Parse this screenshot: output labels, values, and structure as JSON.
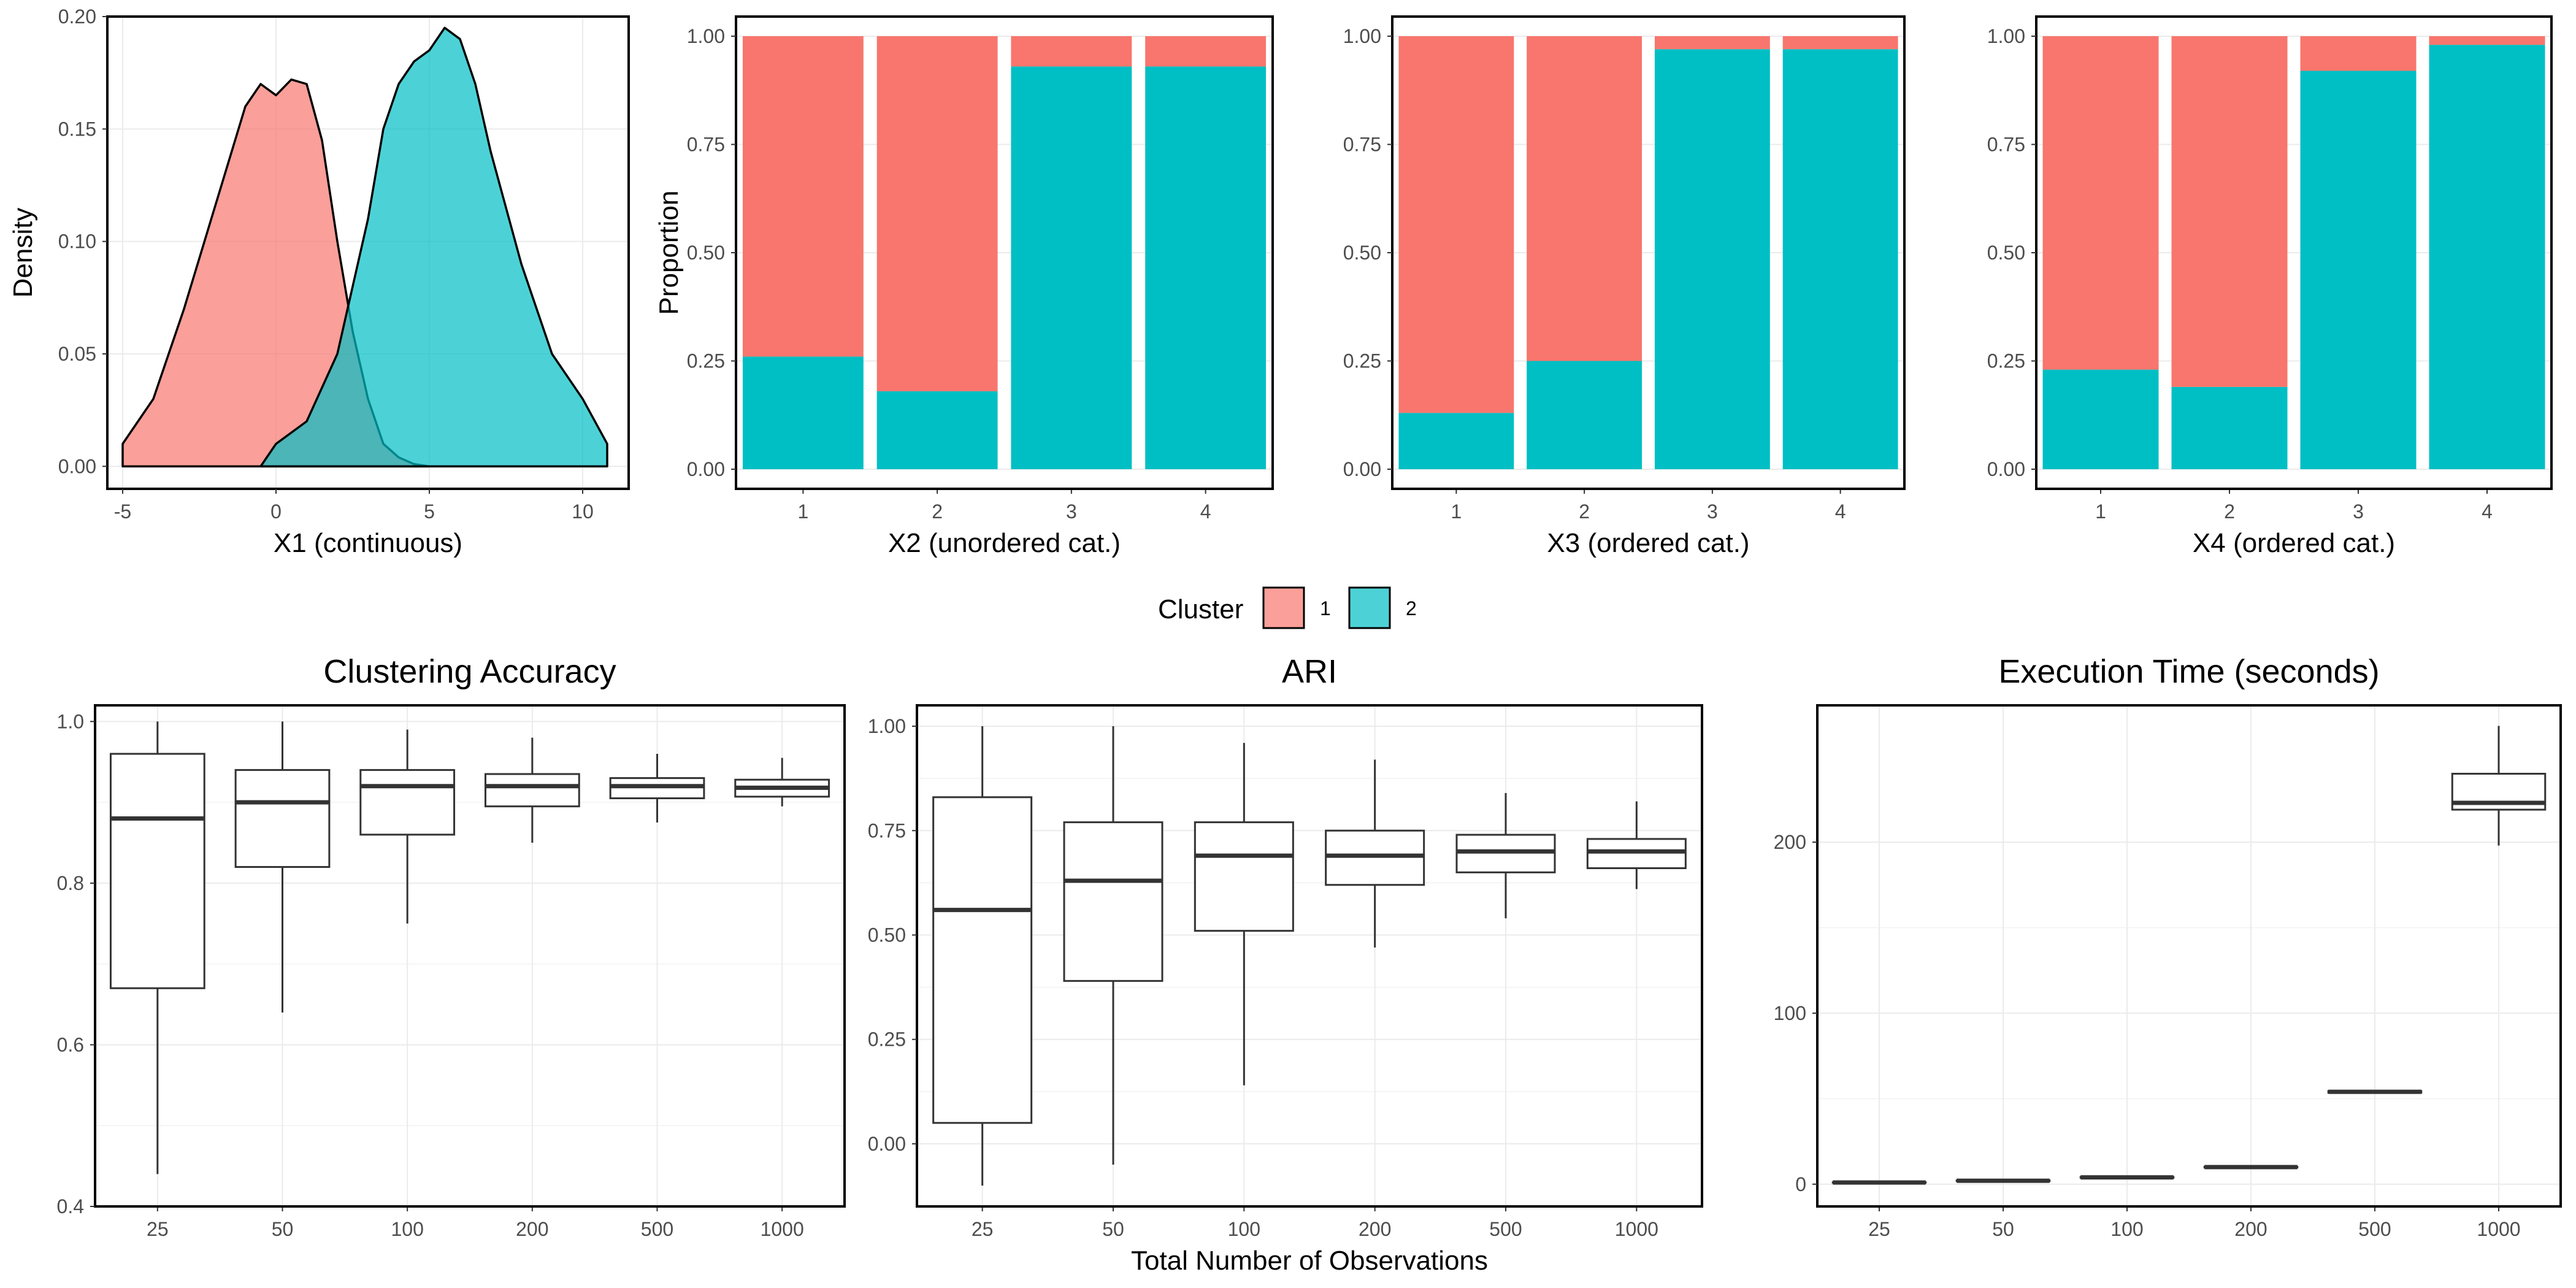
{
  "colors": {
    "cluster1": "#F8766D",
    "cluster2": "#00BFC4",
    "grid": "#EBEBEB",
    "box": "#333333"
  },
  "legend": {
    "title": "Cluster",
    "items": [
      {
        "label": "1",
        "color": "#F8766D"
      },
      {
        "label": "2",
        "color": "#00BFC4"
      }
    ]
  },
  "chart_data": [
    {
      "type": "area",
      "id": "density",
      "xlabel": "X1 (continuous)",
      "ylabel": "Density",
      "xlim": [
        -5.5,
        11.5
      ],
      "ylim": [
        -0.01,
        0.2
      ],
      "xticks": [
        -5,
        0,
        5,
        10
      ],
      "yticks": [
        0.0,
        0.05,
        0.1,
        0.15,
        0.2
      ],
      "ytick_labels": [
        "0.00",
        "0.05",
        "0.10",
        "0.15",
        "0.20"
      ],
      "series": [
        {
          "name": "1",
          "x": [
            -5.0,
            -4.0,
            -3.0,
            -2.0,
            -1.0,
            -0.5,
            0.0,
            0.5,
            1.0,
            1.5,
            2.0,
            2.5,
            3.0,
            3.5,
            4.0,
            4.5,
            5.0
          ],
          "y": [
            0.01,
            0.03,
            0.07,
            0.115,
            0.16,
            0.17,
            0.165,
            0.172,
            0.17,
            0.145,
            0.1,
            0.06,
            0.03,
            0.01,
            0.004,
            0.001,
            0.0
          ]
        },
        {
          "name": "2",
          "x": [
            -0.5,
            0.0,
            1.0,
            2.0,
            2.5,
            3.0,
            3.5,
            4.0,
            4.5,
            5.0,
            5.5,
            6.0,
            6.5,
            7.0,
            8.0,
            9.0,
            10.0,
            10.8
          ],
          "y": [
            0.0,
            0.01,
            0.02,
            0.05,
            0.08,
            0.11,
            0.15,
            0.17,
            0.18,
            0.185,
            0.195,
            0.19,
            0.17,
            0.14,
            0.09,
            0.05,
            0.03,
            0.01
          ]
        }
      ]
    },
    {
      "type": "bar",
      "id": "x2",
      "stacked": true,
      "xlabel": "X2 (unordered cat.)",
      "ylabel": "Proportion",
      "categories": [
        "1",
        "2",
        "3",
        "4"
      ],
      "yticks": [
        "0.00",
        "0.25",
        "0.50",
        "0.75",
        "1.00"
      ],
      "series": [
        {
          "name": "2",
          "values": [
            0.26,
            0.18,
            0.93,
            0.93
          ]
        },
        {
          "name": "1",
          "values": [
            0.74,
            0.82,
            0.07,
            0.07
          ]
        }
      ]
    },
    {
      "type": "bar",
      "id": "x3",
      "stacked": true,
      "xlabel": "X3 (ordered cat.)",
      "categories": [
        "1",
        "2",
        "3",
        "4"
      ],
      "yticks": [
        "0.00",
        "0.25",
        "0.50",
        "0.75",
        "1.00"
      ],
      "series": [
        {
          "name": "2",
          "values": [
            0.13,
            0.25,
            0.97,
            0.97
          ]
        },
        {
          "name": "1",
          "values": [
            0.87,
            0.75,
            0.03,
            0.03
          ]
        }
      ]
    },
    {
      "type": "bar",
      "id": "x4",
      "stacked": true,
      "xlabel": "X4 (ordered cat.)",
      "categories": [
        "1",
        "2",
        "3",
        "4"
      ],
      "yticks": [
        "0.00",
        "0.25",
        "0.50",
        "0.75",
        "1.00"
      ],
      "series": [
        {
          "name": "2",
          "values": [
            0.23,
            0.19,
            0.92,
            0.98
          ]
        },
        {
          "name": "1",
          "values": [
            0.77,
            0.81,
            0.08,
            0.02
          ]
        }
      ]
    },
    {
      "type": "box",
      "id": "accuracy",
      "title": "Clustering Accuracy",
      "categories": [
        "25",
        "50",
        "100",
        "200",
        "500",
        "1000"
      ],
      "ylim": [
        0.4,
        1.02
      ],
      "yticks": [
        0.4,
        0.6,
        0.8,
        1.0
      ],
      "ytick_labels": [
        "0.4",
        "0.6",
        "0.8",
        "1.0"
      ],
      "boxes": [
        {
          "min": 0.44,
          "q1": 0.67,
          "median": 0.88,
          "q3": 0.96,
          "max": 1.0
        },
        {
          "min": 0.64,
          "q1": 0.82,
          "median": 0.9,
          "q3": 0.94,
          "max": 1.0
        },
        {
          "min": 0.75,
          "q1": 0.86,
          "median": 0.92,
          "q3": 0.94,
          "max": 0.99
        },
        {
          "min": 0.85,
          "q1": 0.895,
          "median": 0.92,
          "q3": 0.935,
          "max": 0.98
        },
        {
          "min": 0.875,
          "q1": 0.905,
          "median": 0.92,
          "q3": 0.93,
          "max": 0.96
        },
        {
          "min": 0.895,
          "q1": 0.907,
          "median": 0.918,
          "q3": 0.928,
          "max": 0.955
        }
      ]
    },
    {
      "type": "box",
      "id": "ari",
      "title": "ARI",
      "xlabel": "Total Number of Observations",
      "categories": [
        "25",
        "50",
        "100",
        "200",
        "500",
        "1000"
      ],
      "ylim": [
        -0.15,
        1.05
      ],
      "yticks": [
        0.0,
        0.25,
        0.5,
        0.75,
        1.0
      ],
      "ytick_labels": [
        "0.00",
        "0.25",
        "0.50",
        "0.75",
        "1.00"
      ],
      "boxes": [
        {
          "min": -0.1,
          "q1": 0.05,
          "median": 0.56,
          "q3": 0.83,
          "max": 1.0
        },
        {
          "min": -0.05,
          "q1": 0.39,
          "median": 0.63,
          "q3": 0.77,
          "max": 1.0
        },
        {
          "min": 0.14,
          "q1": 0.51,
          "median": 0.69,
          "q3": 0.77,
          "max": 0.96
        },
        {
          "min": 0.47,
          "q1": 0.62,
          "median": 0.69,
          "q3": 0.75,
          "max": 0.92
        },
        {
          "min": 0.54,
          "q1": 0.65,
          "median": 0.7,
          "q3": 0.74,
          "max": 0.84
        },
        {
          "min": 0.61,
          "q1": 0.66,
          "median": 0.7,
          "q3": 0.73,
          "max": 0.82
        }
      ]
    },
    {
      "type": "box",
      "id": "time",
      "title": "Execution Time (seconds)",
      "categories": [
        "25",
        "50",
        "100",
        "200",
        "500",
        "1000"
      ],
      "ylim": [
        -13,
        280
      ],
      "yticks": [
        0,
        100,
        200
      ],
      "ytick_labels": [
        "0",
        "100",
        "200"
      ],
      "boxes": [
        {
          "min": 0.8,
          "q1": 0.9,
          "median": 1.0,
          "q3": 1.1,
          "max": 1.2
        },
        {
          "min": 1.6,
          "q1": 1.8,
          "median": 2.0,
          "q3": 2.2,
          "max": 2.4
        },
        {
          "min": 3.6,
          "q1": 3.8,
          "median": 4.0,
          "q3": 4.2,
          "max": 4.4
        },
        {
          "min": 9.6,
          "q1": 9.8,
          "median": 10.0,
          "q3": 10.2,
          "max": 10.4
        },
        {
          "min": 53.0,
          "q1": 53.5,
          "median": 54.0,
          "q3": 54.5,
          "max": 55.0
        },
        {
          "min": 198,
          "q1": 219,
          "median": 223,
          "q3": 240,
          "max": 268
        }
      ]
    }
  ]
}
